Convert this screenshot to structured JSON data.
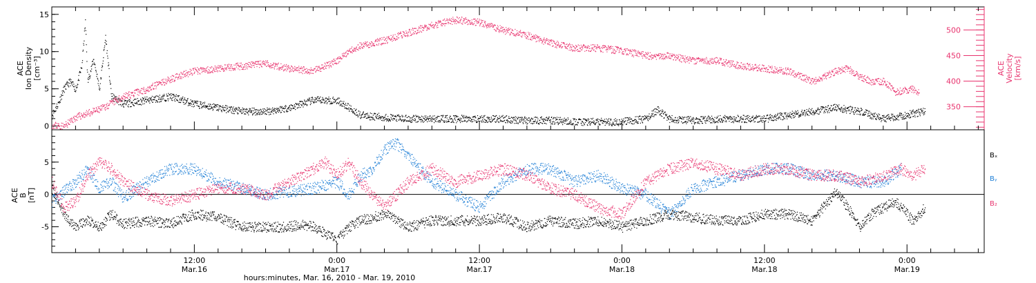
{
  "colors": {
    "black": "#000000",
    "pink": "#e8336e",
    "blue": "#1f7fd6"
  },
  "chart_data": [
    {
      "type": "scatter",
      "panel": "top",
      "xlabel": "hours:minutes, Mar. 16, 2010 - Mar. 19, 2010",
      "x_ticks": [
        {
          "hours": 12,
          "label": "12:00",
          "sublabel": "Mar.16"
        },
        {
          "hours": 24,
          "label": "0:00",
          "sublabel": "Mar.17"
        },
        {
          "hours": 36,
          "label": "12:00",
          "sublabel": "Mar.17"
        },
        {
          "hours": 48,
          "label": "0:00",
          "sublabel": "Mar.18"
        },
        {
          "hours": 60,
          "label": "12:00",
          "sublabel": "Mar.18"
        },
        {
          "hours": 72,
          "label": "0:00",
          "sublabel": "Mar.19"
        }
      ],
      "xlim_hours": [
        0,
        78.5
      ],
      "left_axis": {
        "label_lines": [
          "ACE",
          "Ion Density",
          "[cm⁻³]"
        ],
        "ylim": [
          -0.5,
          16
        ],
        "ticks": [
          "0",
          "5",
          "10",
          "15"
        ]
      },
      "right_axis": {
        "label_lines": [
          "ACE",
          "Velocity",
          "[km/s]"
        ],
        "ylim": [
          305,
          545
        ],
        "ticks": [
          "350",
          "400",
          "450",
          "500"
        ]
      },
      "series": [
        {
          "name": "Ion Density",
          "axis": "left",
          "color": "black",
          "points": [
            [
              0,
              1.5
            ],
            [
              0.5,
              3
            ],
            [
              1,
              5
            ],
            [
              1.5,
              6
            ],
            [
              2,
              5
            ],
            [
              2.5,
              8
            ],
            [
              2.8,
              14
            ],
            [
              3,
              6
            ],
            [
              3.5,
              9
            ],
            [
              4,
              5
            ],
            [
              4.5,
              12
            ],
            [
              5,
              4
            ],
            [
              6,
              3
            ],
            [
              8,
              3.5
            ],
            [
              10,
              4
            ],
            [
              12,
              3
            ],
            [
              14,
              2.5
            ],
            [
              16,
              2
            ],
            [
              18,
              2
            ],
            [
              20,
              2.5
            ],
            [
              22,
              3.5
            ],
            [
              24,
              3.5
            ],
            [
              25,
              2.5
            ],
            [
              26,
              1.5
            ],
            [
              28,
              1.2
            ],
            [
              30,
              1
            ],
            [
              32,
              1
            ],
            [
              34,
              1
            ],
            [
              36,
              1
            ],
            [
              38,
              1
            ],
            [
              40,
              0.8
            ],
            [
              42,
              0.8
            ],
            [
              44,
              0.6
            ],
            [
              46,
              0.6
            ],
            [
              48,
              0.6
            ],
            [
              50,
              1
            ],
            [
              51,
              2.2
            ],
            [
              52,
              1
            ],
            [
              54,
              0.8
            ],
            [
              56,
              1
            ],
            [
              58,
              1
            ],
            [
              60,
              1
            ],
            [
              62,
              1.5
            ],
            [
              64,
              2
            ],
            [
              66,
              2.5
            ],
            [
              68,
              2
            ],
            [
              69,
              1.5
            ],
            [
              70,
              1
            ],
            [
              73.5,
              2
            ]
          ]
        },
        {
          "name": "Velocity",
          "axis": "right",
          "color": "pink",
          "points": [
            [
              0,
              315
            ],
            [
              1,
              312
            ],
            [
              2,
              330
            ],
            [
              4,
              345
            ],
            [
              6,
              370
            ],
            [
              8,
              385
            ],
            [
              10,
              405
            ],
            [
              12,
              420
            ],
            [
              14,
              425
            ],
            [
              16,
              430
            ],
            [
              18,
              435
            ],
            [
              20,
              425
            ],
            [
              22,
              420
            ],
            [
              24,
              440
            ],
            [
              25,
              460
            ],
            [
              26,
              470
            ],
            [
              28,
              480
            ],
            [
              30,
              495
            ],
            [
              32,
              510
            ],
            [
              34,
              520
            ],
            [
              36,
              515
            ],
            [
              38,
              500
            ],
            [
              40,
              490
            ],
            [
              42,
              475
            ],
            [
              44,
              465
            ],
            [
              46,
              465
            ],
            [
              48,
              460
            ],
            [
              50,
              450
            ],
            [
              52,
              450
            ],
            [
              54,
              440
            ],
            [
              56,
              440
            ],
            [
              58,
              430
            ],
            [
              60,
              425
            ],
            [
              62,
              420
            ],
            [
              63,
              410
            ],
            [
              64,
              400
            ],
            [
              65,
              410
            ],
            [
              66,
              420
            ],
            [
              67,
              425
            ],
            [
              68,
              410
            ],
            [
              69,
              400
            ],
            [
              70,
              400
            ],
            [
              71,
              380
            ],
            [
              72.5,
              385
            ],
            [
              73,
              378
            ]
          ]
        }
      ]
    },
    {
      "type": "scatter",
      "panel": "bottom",
      "xlim_hours": [
        0,
        78.5
      ],
      "left_axis": {
        "label_lines": [
          "ACE",
          "B",
          "[nT]"
        ],
        "ylim": [
          -9,
          10
        ],
        "ticks": [
          "-5",
          "0",
          "5"
        ]
      },
      "legend": [
        "Bₓ",
        "Bᵧ",
        "B₂"
      ],
      "series": [
        {
          "name": "Bx",
          "color": "black",
          "points": [
            [
              0,
              1
            ],
            [
              0.5,
              -1
            ],
            [
              1,
              -3
            ],
            [
              2,
              -5
            ],
            [
              3,
              -4
            ],
            [
              4,
              -5
            ],
            [
              5,
              -3
            ],
            [
              6,
              -4.5
            ],
            [
              8,
              -4
            ],
            [
              10,
              -4.5
            ],
            [
              12,
              -3
            ],
            [
              14,
              -3.5
            ],
            [
              16,
              -5
            ],
            [
              18,
              -5
            ],
            [
              20,
              -5
            ],
            [
              21,
              -4.5
            ],
            [
              22,
              -5
            ],
            [
              23,
              -6
            ],
            [
              24,
              -7
            ],
            [
              25,
              -5
            ],
            [
              26,
              -4
            ],
            [
              28,
              -3
            ],
            [
              30,
              -5
            ],
            [
              32,
              -4
            ],
            [
              34,
              -4
            ],
            [
              36,
              -4
            ],
            [
              38,
              -3.5
            ],
            [
              40,
              -5
            ],
            [
              42,
              -4
            ],
            [
              44,
              -4.5
            ],
            [
              46,
              -4
            ],
            [
              48,
              -5
            ],
            [
              50,
              -4
            ],
            [
              52,
              -3
            ],
            [
              54,
              -3.5
            ],
            [
              56,
              -4
            ],
            [
              58,
              -4
            ],
            [
              60,
              -3
            ],
            [
              62,
              -3
            ],
            [
              64,
              -4
            ],
            [
              66,
              0.5
            ],
            [
              67,
              -2
            ],
            [
              68,
              -5
            ],
            [
              69,
              -3
            ],
            [
              70,
              -2
            ],
            [
              71,
              -1
            ],
            [
              72.5,
              -4
            ],
            [
              73.5,
              -2
            ]
          ]
        },
        {
          "name": "By",
          "color": "blue",
          "points": [
            [
              0,
              -1
            ],
            [
              2,
              2
            ],
            [
              3,
              4
            ],
            [
              4,
              1
            ],
            [
              5,
              2
            ],
            [
              6,
              -0.5
            ],
            [
              8,
              2
            ],
            [
              10,
              4
            ],
            [
              12,
              4
            ],
            [
              14,
              2
            ],
            [
              16,
              1
            ],
            [
              18,
              0
            ],
            [
              20,
              0.5
            ],
            [
              22,
              1
            ],
            [
              24,
              2
            ],
            [
              25,
              0
            ],
            [
              26,
              3
            ],
            [
              27,
              4
            ],
            [
              28,
              7
            ],
            [
              29,
              8
            ],
            [
              30,
              6
            ],
            [
              31,
              4
            ],
            [
              32,
              2
            ],
            [
              34,
              0
            ],
            [
              36,
              -2
            ],
            [
              38,
              2
            ],
            [
              40,
              4
            ],
            [
              42,
              4
            ],
            [
              44,
              2
            ],
            [
              46,
              3
            ],
            [
              48,
              1
            ],
            [
              50,
              0
            ],
            [
              52,
              -3
            ],
            [
              54,
              1
            ],
            [
              56,
              2
            ],
            [
              58,
              3
            ],
            [
              60,
              4
            ],
            [
              62,
              4
            ],
            [
              64,
              3
            ],
            [
              66,
              3
            ],
            [
              68,
              2
            ],
            [
              70,
              2
            ],
            [
              71.5,
              4
            ]
          ]
        },
        {
          "name": "Bz",
          "color": "pink",
          "points": [
            [
              0,
              2
            ],
            [
              1,
              -2
            ],
            [
              2,
              -1
            ],
            [
              3,
              3
            ],
            [
              4,
              5
            ],
            [
              5,
              4
            ],
            [
              6,
              2
            ],
            [
              8,
              0
            ],
            [
              10,
              -1
            ],
            [
              12,
              0
            ],
            [
              14,
              1
            ],
            [
              16,
              1
            ],
            [
              18,
              0
            ],
            [
              20,
              2
            ],
            [
              22,
              4
            ],
            [
              23,
              5
            ],
            [
              24,
              3
            ],
            [
              25,
              5
            ],
            [
              26,
              2
            ],
            [
              28,
              -2
            ],
            [
              30,
              2
            ],
            [
              32,
              4
            ],
            [
              34,
              2
            ],
            [
              36,
              3
            ],
            [
              38,
              4
            ],
            [
              40,
              3
            ],
            [
              42,
              1
            ],
            [
              44,
              0
            ],
            [
              46,
              -2
            ],
            [
              48,
              -3
            ],
            [
              50,
              2
            ],
            [
              52,
              4
            ],
            [
              54,
              5
            ],
            [
              56,
              4
            ],
            [
              58,
              3
            ],
            [
              60,
              4
            ],
            [
              62,
              4
            ],
            [
              64,
              3
            ],
            [
              66,
              3
            ],
            [
              68,
              2
            ],
            [
              70,
              3
            ],
            [
              71.5,
              4
            ],
            [
              72.5,
              3
            ],
            [
              73.5,
              4
            ]
          ]
        }
      ]
    }
  ]
}
